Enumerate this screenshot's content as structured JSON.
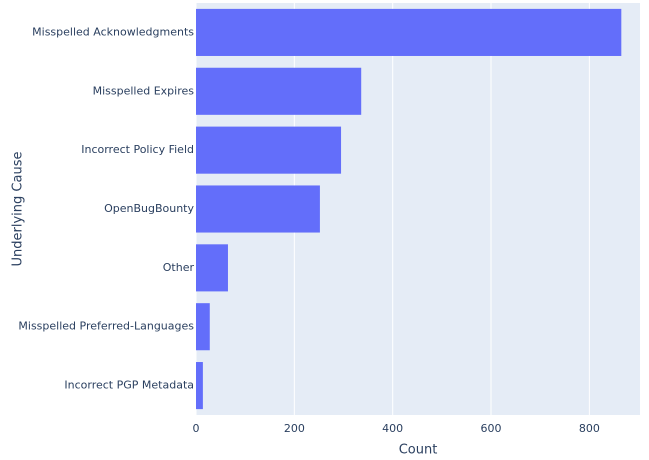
{
  "chart_data": {
    "type": "bar",
    "orientation": "horizontal",
    "x_label": "Count",
    "y_label": "Underlying Cause",
    "categories": [
      "Misspelled Acknowledgments",
      "Misspelled Expires",
      "Incorrect Policy Field",
      "OpenBugBounty",
      "Other",
      "Misspelled Preferred-Languages",
      "Incorrect PGP Metadata"
    ],
    "values": [
      865,
      336,
      295,
      252,
      65,
      28,
      14
    ],
    "color": "#636efa",
    "xlim": [
      0,
      903
    ],
    "xticks": [
      0,
      200,
      400,
      600,
      800
    ],
    "grid": true
  }
}
